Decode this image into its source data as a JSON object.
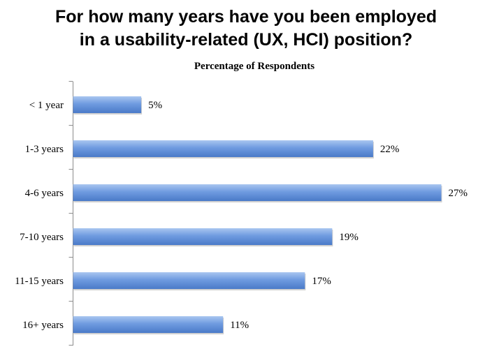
{
  "chart_data": {
    "type": "bar",
    "orientation": "horizontal",
    "title_lines": [
      "For how many years have you been employed",
      "in a usability-related (UX, HCI) position?"
    ],
    "subtitle": "Percentage of Respondents",
    "categories": [
      "< 1 year",
      "1-3 years",
      "4-6 years",
      "7-10 years",
      "11-15 years",
      "16+ years"
    ],
    "values": [
      5,
      22,
      27,
      19,
      17,
      11
    ],
    "value_labels": [
      "5%",
      "22%",
      "27%",
      "19%",
      "17%",
      "11%"
    ],
    "unit": "%",
    "xlim": [
      0,
      27
    ],
    "grid": false,
    "legend": "none",
    "bar_color": "#6f9be0",
    "bar_color_light": "#a9c6f0",
    "bar_color_dark": "#4a7ac8"
  }
}
